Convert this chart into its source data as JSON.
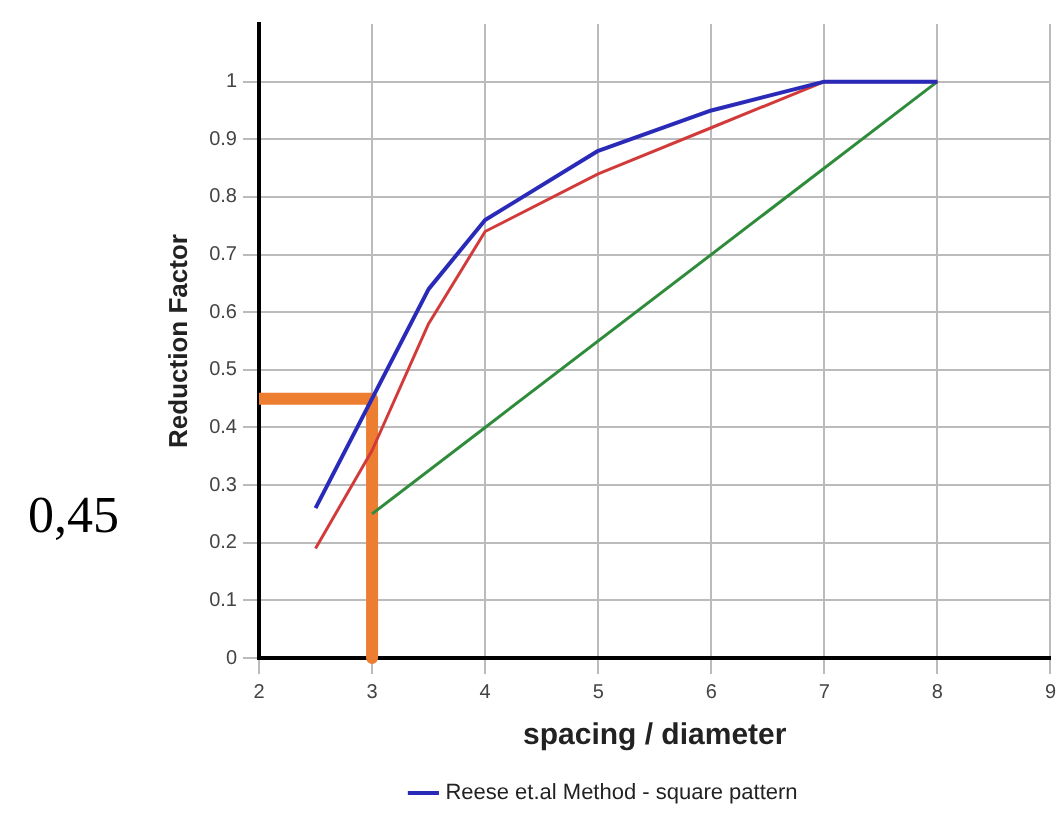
{
  "chart_data": {
    "type": "line",
    "xlabel": "spacing / diameter",
    "ylabel": "Reduction Factor",
    "annotations": [
      "0,45"
    ],
    "xlim": [
      2,
      9
    ],
    "xticks": [
      2,
      3,
      4,
      5,
      6,
      7,
      8,
      9
    ],
    "ylim": [
      0,
      1.1
    ],
    "yticks": [
      0,
      0.1,
      0.2,
      0.3,
      0.4,
      0.5,
      0.6,
      0.7,
      0.8,
      0.9,
      1
    ],
    "grid": true,
    "legend": "bottom",
    "marker": "none",
    "line_style": "solid",
    "series": [
      {
        "name": "Reese et.al Method - square pattern",
        "color": "#2a2ab8",
        "x": [
          2.5,
          3,
          3.5,
          4,
          5,
          6,
          7,
          8
        ],
        "values": [
          0.26,
          0.45,
          0.64,
          0.76,
          0.88,
          0.95,
          1,
          1
        ]
      },
      {
        "color": "#d23a3a",
        "x": [
          2.5,
          3,
          3.5,
          4,
          5,
          6,
          7,
          8
        ],
        "values": [
          0.19,
          0.36,
          0.58,
          0.74,
          0.84,
          0.92,
          1,
          1
        ]
      },
      {
        "color": "#2e8b3a",
        "x": [
          3,
          4,
          8
        ],
        "values": [
          0.25,
          0.4,
          1
        ]
      },
      {
        "color": "#ed7d31",
        "x": [
          2,
          3,
          3
        ],
        "values": [
          0.45,
          0.45,
          0
        ]
      }
    ]
  }
}
